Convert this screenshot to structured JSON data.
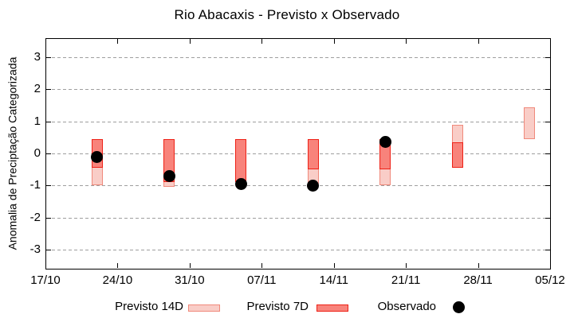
{
  "colors": {
    "previsto_14d_fill": "#f9cdc7",
    "previsto_14d_border": "#f0897b",
    "previsto_7d_fill": "#f8837b",
    "previsto_7d_border": "#ee2116",
    "observado": "#000000",
    "grid": "#9e9e9e",
    "axis": "#000000",
    "background": "#ffffff"
  },
  "chart_data": {
    "type": "bar",
    "subtype": "range-bars-with-points",
    "title": "Rio Abacaxis - Previsto x Observado",
    "ylabel": "Anomalia de Preciptação Categorizada",
    "xlabel": "",
    "ylim": [
      -3.6,
      3.6
    ],
    "y_ticks": [
      3,
      2,
      1,
      0,
      -1,
      -2,
      -3
    ],
    "xlim_days": [
      0,
      49
    ],
    "x_ticks": [
      {
        "day": 0,
        "label": "17/10"
      },
      {
        "day": 7,
        "label": "24/10"
      },
      {
        "day": 14,
        "label": "31/10"
      },
      {
        "day": 21,
        "label": "07/11"
      },
      {
        "day": 28,
        "label": "14/11"
      },
      {
        "day": 35,
        "label": "21/11"
      },
      {
        "day": 42,
        "label": "28/11"
      },
      {
        "day": 49,
        "label": "05/12"
      }
    ],
    "grid": "horizontal-dashed",
    "legend_position": "bottom",
    "legend": {
      "items": [
        {
          "label": "Previsto 14D",
          "swatch": "light-box"
        },
        {
          "label": "Previsto 7D",
          "swatch": "dark-box"
        },
        {
          "label": "Observado",
          "swatch": "black-dot"
        }
      ]
    },
    "bars": [
      {
        "date": "22/10",
        "day": 5,
        "previsto_14d": [
          -1.0,
          0.45
        ],
        "previsto_7d": [
          -0.45,
          0.45
        ],
        "observado": -0.1
      },
      {
        "date": "29/10",
        "day": 12,
        "previsto_14d": [
          -1.05,
          0.45
        ],
        "previsto_7d": [
          -0.9,
          0.45
        ],
        "observado": -0.7
      },
      {
        "date": "05/11",
        "day": 19,
        "previsto_14d": null,
        "previsto_7d": [
          -0.9,
          0.45
        ],
        "observado": -0.95
      },
      {
        "date": "12/11",
        "day": 26,
        "previsto_14d": [
          -0.95,
          0.45
        ],
        "previsto_7d": [
          -0.5,
          0.45
        ],
        "observado": -1.0
      },
      {
        "date": "19/11",
        "day": 33,
        "previsto_14d": [
          -1.0,
          0.45
        ],
        "previsto_7d": [
          -0.5,
          0.45
        ],
        "observado": 0.35
      },
      {
        "date": "26/11",
        "day": 40,
        "previsto_14d": [
          -0.45,
          0.9
        ],
        "previsto_7d": [
          -0.45,
          0.35
        ],
        "observado": null
      },
      {
        "date": "03/12",
        "day": 47,
        "previsto_14d": [
          0.45,
          1.45
        ],
        "previsto_7d": null,
        "observado": null
      }
    ]
  }
}
